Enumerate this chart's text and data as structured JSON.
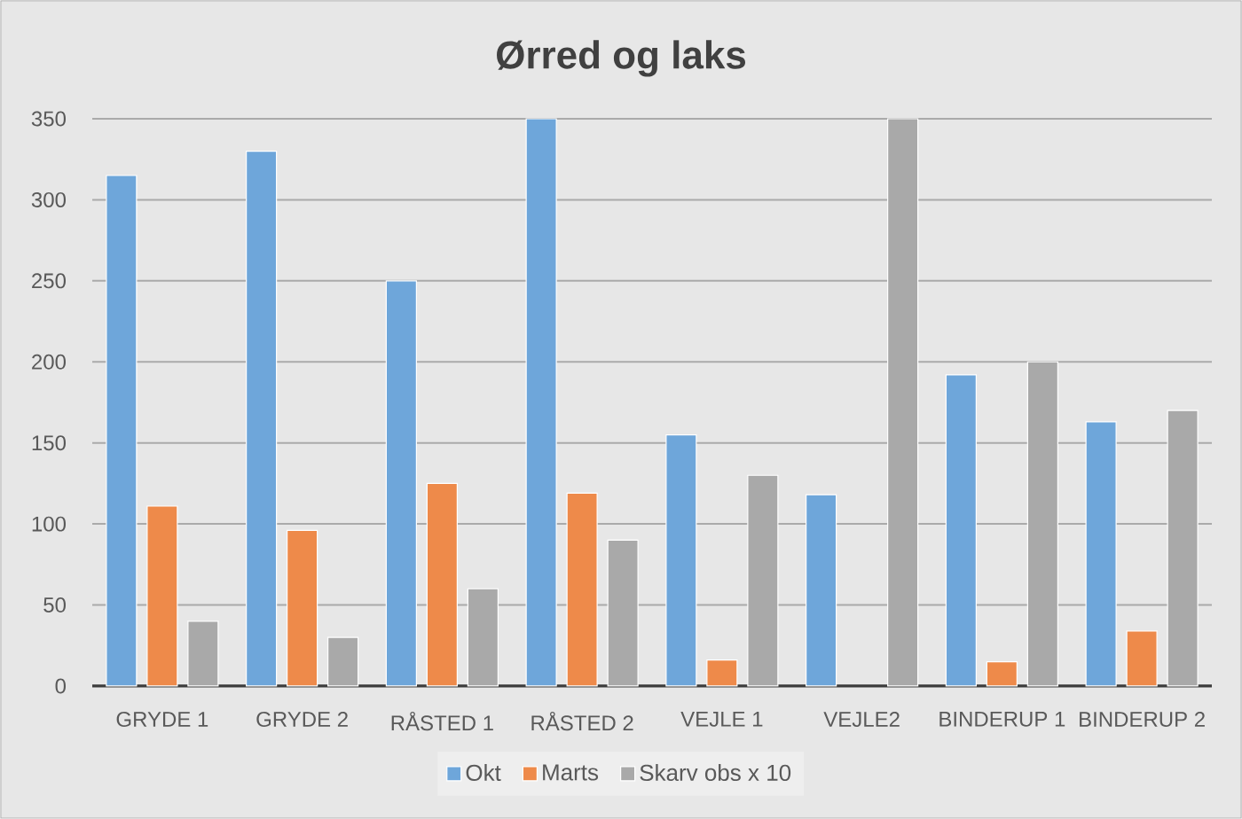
{
  "chart_data": {
    "type": "bar",
    "title": "Ørred og laks",
    "categories": [
      "GRYDE 1",
      "GRYDE 2",
      "RÅSTED 1",
      "RÅSTED 2",
      "VEJLE 1",
      "VEJLE2",
      "BINDERUP 1",
      "BINDERUP 2"
    ],
    "series": [
      {
        "name": "Okt",
        "color": "#6ea6da",
        "values": [
          315,
          330,
          250,
          350,
          155,
          118,
          192,
          163
        ]
      },
      {
        "name": "Marts",
        "color": "#ee8a4a",
        "values": [
          111,
          96,
          125,
          119,
          16,
          null,
          15,
          34
        ]
      },
      {
        "name": "Skarv obs x 10",
        "color": "#a9a9a9",
        "values": [
          40,
          30,
          60,
          90,
          130,
          350,
          200,
          170
        ]
      }
    ],
    "ylim": [
      0,
      350
    ],
    "yticks": [
      0,
      50,
      100,
      150,
      200,
      250,
      300,
      350
    ],
    "grid": "y",
    "legend": "bottom"
  }
}
